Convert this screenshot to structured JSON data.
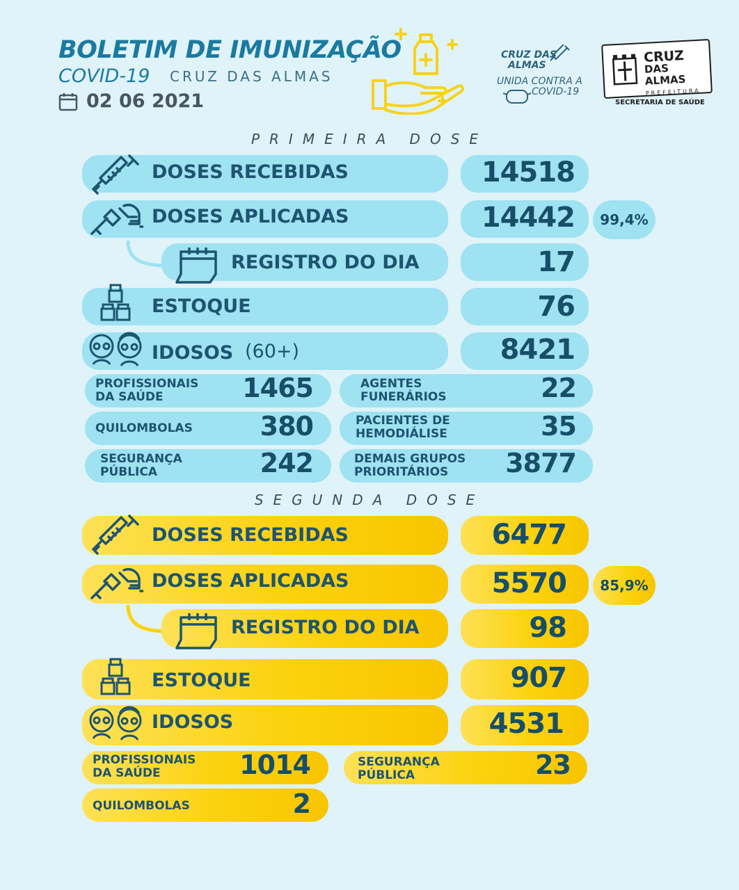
{
  "header": {
    "title": "BOLETIM DE IMUNIZAÇÃO",
    "covid": "COVID-19",
    "city": "CRUZ DAS ALMAS",
    "date": "02 06 2021",
    "logo_campaign": {
      "line1": "CRUZ DAS",
      "line2": "ALMAS",
      "line3": "UNIDA CONTRA A",
      "line4": "COVID-19"
    },
    "logo_prefeitura": {
      "line1": "CRUZ",
      "line2": "DAS ALMAS",
      "line3": "PREFEITURA"
    },
    "secretaria": "SECRETARIA DE SAÚDE"
  },
  "primeira": {
    "section": "PRIMEIRA DOSE",
    "recebidas": {
      "label": "DOSES RECEBIDAS",
      "value": "14518"
    },
    "aplicadas": {
      "label": "DOSES APLICADAS",
      "value": "14442",
      "pct": "99,4%"
    },
    "registro": {
      "label": "REGISTRO DO DIA",
      "value": "17"
    },
    "estoque": {
      "label": "ESTOQUE",
      "value": "76"
    },
    "idosos": {
      "label": "IDOSOS",
      "suffix": "(60+)",
      "value": "8421"
    },
    "groups": [
      {
        "l1": "PROFISSIONAIS",
        "l2": "DA SAÚDE",
        "value": "1465"
      },
      {
        "l1": "AGENTES",
        "l2": "FUNERÁRIOS",
        "value": "22"
      },
      {
        "l1": "QUILOMBOLAS",
        "l2": "",
        "value": "380"
      },
      {
        "l1": "PACIENTES DE",
        "l2": "HEMODIÁLISE",
        "value": "35"
      },
      {
        "l1": "SEGURANÇA",
        "l2": "PÚBLICA",
        "value": "242"
      },
      {
        "l1": "DEMAIS GRUPOS",
        "l2": "PRIORITÁRIOS",
        "value": "3877"
      }
    ]
  },
  "segunda": {
    "section": "SEGUNDA DOSE",
    "recebidas": {
      "label": "DOSES RECEBIDAS",
      "value": "6477"
    },
    "aplicadas": {
      "label": "DOSES APLICADAS",
      "value": "5570",
      "pct": "85,9%"
    },
    "registro": {
      "label": "REGISTRO DO DIA",
      "value": "98"
    },
    "estoque": {
      "label": "ESTOQUE",
      "value": "907"
    },
    "idosos": {
      "label": "IDOSOS",
      "value": "4531"
    },
    "groups": [
      {
        "l1": "PROFISSIONAIS",
        "l2": "DA SAÚDE",
        "value": "1014"
      },
      {
        "l1": "SEGURANÇA",
        "l2": "PÚBLICA",
        "value": "23"
      },
      {
        "l1": "QUILOMBOLAS",
        "l2": "",
        "value": "2"
      }
    ]
  },
  "colors": {
    "blue_pill": "#9fe2f1",
    "yellow_pill": "#fbd20e",
    "text_dark": "#174e68",
    "title": "#1b7aa0",
    "background": "#dff3f9"
  },
  "icons": [
    "syringe-icon",
    "vaccination-hand-icon",
    "calendar-icon",
    "vials-icon",
    "elderly-couple-icon",
    "vaccine-hand-icon"
  ]
}
